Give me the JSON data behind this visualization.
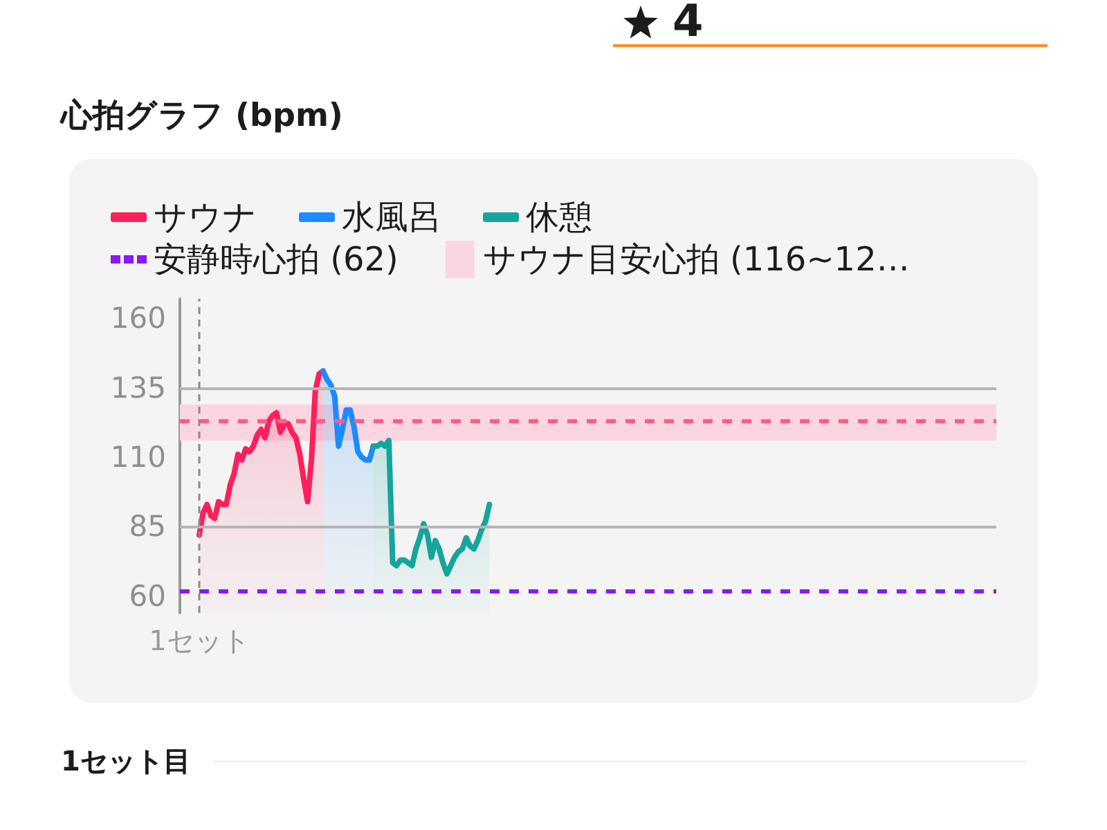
{
  "chart_data": {
    "type": "area",
    "title": "心拍グラフ (bpm)",
    "categories": [
      null,
      null,
      null,
      null,
      null,
      "1セット",
      null,
      null,
      null,
      null,
      null,
      null,
      null,
      null,
      null,
      null,
      null,
      null,
      null,
      null,
      null,
      null,
      null,
      null,
      null,
      null,
      null,
      null,
      null,
      null,
      null,
      null,
      null,
      null,
      null,
      null,
      null,
      null,
      null,
      null,
      null,
      null,
      null,
      null,
      null,
      null,
      null,
      null,
      null,
      null,
      null,
      null,
      null,
      null,
      null,
      null,
      null,
      null,
      null,
      null,
      null,
      null,
      null,
      null,
      null,
      null,
      null,
      null,
      null,
      null,
      null,
      null,
      null,
      null,
      null,
      null,
      null,
      null,
      null,
      null,
      null,
      null,
      null,
      null,
      null,
      null,
      null,
      null,
      null,
      null,
      null,
      null,
      null,
      null,
      null,
      null,
      null,
      null,
      null,
      null,
      null,
      null,
      null,
      null,
      null,
      null,
      null,
      null,
      null,
      null,
      null,
      null,
      null,
      null,
      null,
      null,
      null,
      null,
      null,
      null,
      null,
      null,
      null,
      null,
      null,
      null,
      null,
      null,
      null,
      null,
      null,
      null,
      null,
      null,
      null,
      null,
      null,
      null,
      null,
      null,
      null,
      null,
      null,
      null,
      null,
      null,
      null,
      null,
      null,
      null,
      null,
      null,
      null,
      null,
      null,
      null,
      null,
      null,
      null,
      null,
      null,
      null,
      null,
      null,
      null,
      null,
      null,
      null,
      null,
      null,
      null,
      null,
      null,
      null,
      null,
      null,
      null,
      null,
      null,
      null,
      null,
      null,
      null,
      null,
      null,
      null,
      null,
      null,
      null,
      null,
      null,
      null,
      null,
      null,
      null,
      null,
      null,
      null,
      null,
      null,
      null,
      null,
      null,
      null,
      null,
      null,
      null,
      null,
      null,
      null,
      null,
      null
    ],
    "series": [
      {
        "name": "サウナ",
        "color": "#ff1f5b",
        "values": [
          null,
          null,
          null,
          null,
          null,
          82,
          90,
          93,
          89,
          88,
          94,
          93,
          93,
          100,
          104,
          111,
          109,
          113,
          112,
          114,
          118,
          120,
          117,
          123,
          125,
          126,
          119,
          122,
          122,
          119,
          117,
          111,
          102,
          94,
          109,
          134,
          140,
          141,
          null,
          null,
          null,
          null,
          null,
          null,
          null,
          null,
          null,
          null,
          null,
          null,
          null,
          null,
          null,
          null,
          null,
          null,
          null,
          null,
          null,
          null,
          null,
          null,
          null,
          null,
          null,
          null,
          null,
          null,
          null,
          null,
          null,
          null,
          null,
          null,
          null,
          null,
          null,
          null,
          null,
          null,
          null,
          null,
          null,
          null,
          null,
          null,
          null,
          null,
          null,
          null,
          null,
          null,
          null,
          null,
          null,
          null,
          null,
          null,
          null,
          null,
          null,
          null,
          null,
          null,
          null,
          null,
          null,
          null,
          null,
          null,
          null,
          null,
          null,
          null,
          null,
          null,
          null,
          null,
          null,
          null,
          null,
          null,
          null,
          null,
          null,
          null,
          null,
          null,
          null,
          null,
          null,
          null,
          null,
          null,
          null,
          null,
          null,
          null,
          null,
          null,
          null,
          null,
          null,
          null,
          null,
          null,
          null,
          null,
          null,
          null,
          null,
          null,
          null,
          null,
          null,
          null,
          null,
          null,
          null,
          null,
          null,
          null,
          null,
          null,
          null,
          null,
          null,
          null,
          null,
          null,
          null,
          null,
          null,
          null,
          null,
          null,
          null,
          null,
          null,
          null,
          null,
          null,
          null,
          null,
          null,
          null,
          null,
          null,
          null,
          null,
          null,
          null,
          null,
          null,
          null,
          null,
          null,
          null,
          null,
          null,
          null,
          null,
          null,
          null,
          null,
          null,
          null,
          null,
          null,
          null,
          null,
          null
        ]
      },
      {
        "name": "水風呂",
        "color": "#1a8cff",
        "values": [
          null,
          null,
          null,
          null,
          null,
          null,
          null,
          null,
          null,
          null,
          null,
          null,
          null,
          null,
          null,
          null,
          null,
          null,
          null,
          null,
          null,
          null,
          null,
          null,
          null,
          null,
          null,
          null,
          null,
          null,
          null,
          null,
          null,
          null,
          null,
          null,
          null,
          141,
          138,
          136,
          132,
          114,
          120,
          127,
          127,
          121,
          112,
          110,
          109,
          109,
          114,
          null,
          null,
          null,
          null,
          null,
          null,
          null,
          null,
          null,
          null,
          null,
          null,
          null,
          null,
          null,
          null,
          null,
          null,
          null,
          null,
          null,
          null,
          null,
          null,
          null,
          null,
          null,
          null,
          null,
          null,
          null,
          null,
          null,
          null,
          null,
          null,
          null,
          null,
          null,
          null,
          null,
          null,
          null,
          null,
          null,
          null,
          null,
          null,
          null,
          null,
          null,
          null,
          null,
          null,
          null,
          null,
          null,
          null,
          null,
          null,
          null,
          null,
          null,
          null,
          null,
          null,
          null,
          null,
          null,
          null,
          null,
          null,
          null,
          null,
          null,
          null,
          null,
          null,
          null,
          null,
          null,
          null,
          null,
          null,
          null,
          null,
          null,
          null,
          null,
          null,
          null,
          null,
          null,
          null,
          null,
          null,
          null,
          null,
          null,
          null,
          null,
          null,
          null,
          null,
          null,
          null,
          null,
          null,
          null,
          null,
          null,
          null,
          null,
          null,
          null,
          null,
          null,
          null,
          null,
          null,
          null,
          null,
          null,
          null,
          null,
          null,
          null,
          null,
          null,
          null,
          null,
          null,
          null,
          null,
          null,
          null,
          null,
          null,
          null,
          null,
          null,
          null,
          null,
          null,
          null,
          null,
          null,
          null,
          null,
          null,
          null,
          null,
          null,
          null,
          null,
          null,
          null,
          null,
          null,
          null,
          null
        ]
      },
      {
        "name": "休憩",
        "color": "#16a59c",
        "values": [
          null,
          null,
          null,
          null,
          null,
          null,
          null,
          null,
          null,
          null,
          null,
          null,
          null,
          null,
          null,
          null,
          null,
          null,
          null,
          null,
          null,
          null,
          null,
          null,
          null,
          null,
          null,
          null,
          null,
          null,
          null,
          null,
          null,
          null,
          null,
          null,
          null,
          null,
          null,
          null,
          null,
          null,
          null,
          null,
          null,
          null,
          null,
          null,
          null,
          null,
          114,
          114,
          115,
          114,
          116,
          72,
          71,
          73,
          73,
          72,
          71,
          77,
          81,
          86,
          82,
          74,
          80,
          77,
          72,
          68,
          71,
          74,
          76,
          77,
          81,
          78,
          77,
          80,
          84,
          87,
          93,
          null,
          null,
          null,
          null,
          null,
          null,
          null,
          null,
          null,
          null,
          null,
          null,
          null,
          null,
          null,
          null,
          null,
          null,
          null,
          null,
          null,
          null,
          null,
          null,
          null,
          null,
          null,
          null,
          null,
          null,
          null,
          null,
          null,
          null,
          null,
          null,
          null,
          null,
          null,
          null,
          null,
          null,
          null,
          null,
          null,
          null,
          null,
          null,
          null,
          null,
          null,
          null,
          null,
          null,
          null,
          null,
          null,
          null,
          null,
          null,
          null,
          null,
          null,
          null,
          null,
          null,
          null,
          null,
          null,
          null,
          null,
          null,
          null,
          null,
          null,
          null,
          null,
          null,
          null,
          null,
          null,
          null,
          null,
          null,
          null,
          null,
          null,
          null,
          null,
          null,
          null,
          null,
          null,
          null,
          null,
          null,
          null,
          null,
          null,
          null,
          null,
          null,
          null,
          null,
          null,
          null,
          null,
          null,
          null,
          null,
          null,
          null,
          null,
          null,
          null,
          null,
          null,
          null,
          null,
          null,
          null,
          null,
          null,
          null,
          null,
          null,
          null,
          null,
          null,
          null,
          null
        ]
      }
    ],
    "ylim": [
      54,
      167
    ],
    "yticks": [
      60,
      85,
      110,
      135,
      160
    ],
    "ref_lines": [
      {
        "axis": "y",
        "value": 135,
        "color": "#b5b5b5",
        "line_style": "solid"
      },
      {
        "axis": "y",
        "value": 85,
        "color": "#b5b5b5",
        "line_style": "solid"
      },
      {
        "axis": "y",
        "value": 62,
        "label": "安静時心拍 (62)",
        "color": "#8b17ff",
        "line_style": "dashed"
      },
      {
        "axis": "y",
        "value": 123,
        "color": "#ff5c8a",
        "line_style": "dashed"
      },
      {
        "axis": "x",
        "value": "1セット",
        "color": "#8a8a8a",
        "line_style": "dashed"
      }
    ],
    "bands": [
      {
        "axis": "y",
        "from": 116,
        "to": 129,
        "label": "サウナ目安心拍 (116~12…",
        "color": "#fbd5df"
      }
    ],
    "legend": "top left",
    "annotations": [
      "4",
      "1セット目"
    ]
  }
}
